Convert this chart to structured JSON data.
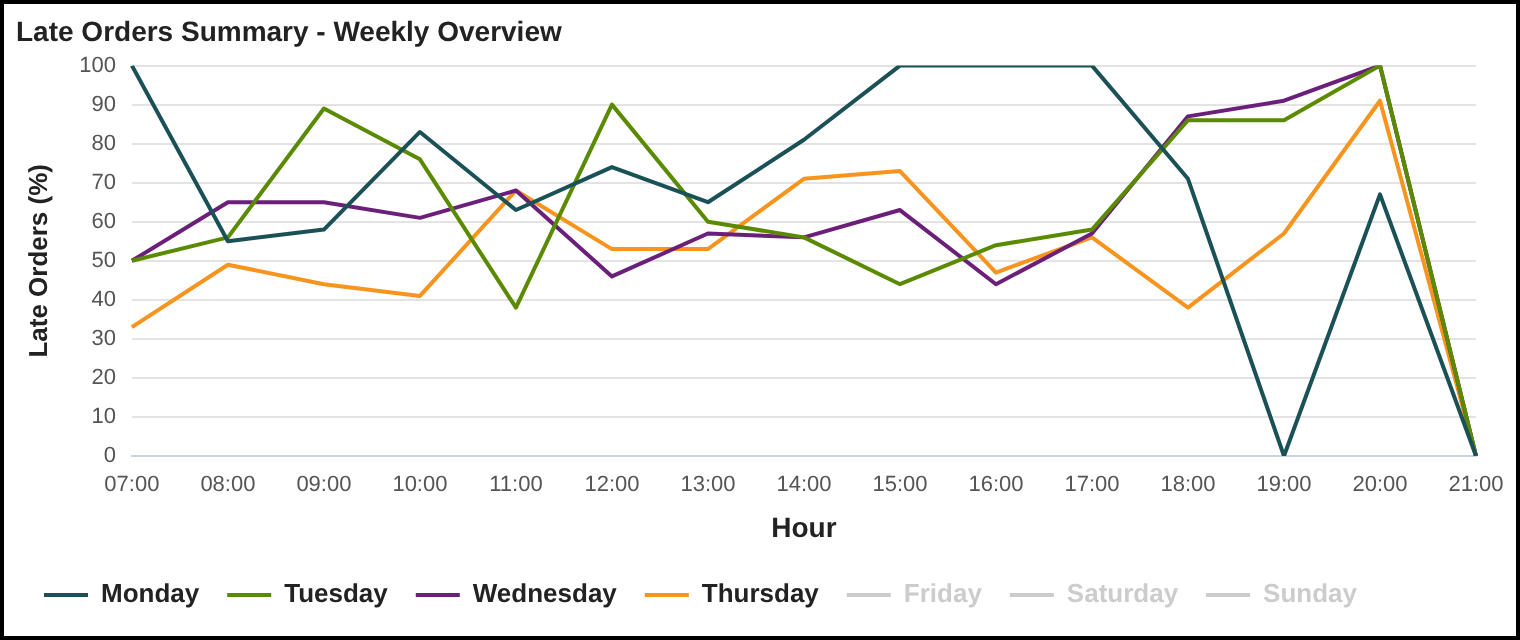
{
  "chart_data": {
    "type": "line",
    "title": "Late Orders Summary - Weekly Overview",
    "xlabel": "Hour",
    "ylabel": "Late Orders (%)",
    "categories": [
      "07:00",
      "08:00",
      "09:00",
      "10:00",
      "11:00",
      "12:00",
      "13:00",
      "14:00",
      "15:00",
      "16:00",
      "17:00",
      "18:00",
      "19:00",
      "20:00",
      "21:00"
    ],
    "series": [
      {
        "name": "Monday",
        "color": "#1a5157",
        "values": [
          100,
          55,
          58,
          83,
          63,
          74,
          65,
          81,
          100,
          100,
          100,
          71,
          0,
          67,
          0
        ]
      },
      {
        "name": "Tuesday",
        "color": "#5a8a00",
        "values": [
          50,
          56,
          89,
          76,
          38,
          90,
          60,
          56,
          44,
          54,
          58,
          86,
          86,
          100,
          0
        ]
      },
      {
        "name": "Wednesday",
        "color": "#6c1f7a",
        "values": [
          50,
          65,
          65,
          61,
          68,
          46,
          57,
          56,
          63,
          44,
          57,
          87,
          91,
          100,
          0
        ]
      },
      {
        "name": "Thursday",
        "color": "#f7941d",
        "values": [
          33,
          49,
          44,
          41,
          68,
          53,
          53,
          71,
          73,
          47,
          56,
          38,
          57,
          91,
          0
        ]
      },
      {
        "name": "Friday",
        "color": "#cccccc",
        "values": [
          null,
          null,
          null,
          null,
          null,
          null,
          null,
          null,
          null,
          null,
          null,
          null,
          null,
          null,
          null
        ]
      },
      {
        "name": "Saturday",
        "color": "#cccccc",
        "values": [
          null,
          null,
          null,
          null,
          null,
          null,
          null,
          null,
          null,
          null,
          null,
          null,
          null,
          null,
          null
        ]
      },
      {
        "name": "Sunday",
        "color": "#cccccc",
        "values": [
          null,
          null,
          null,
          null,
          null,
          null,
          null,
          null,
          null,
          null,
          null,
          null,
          null,
          null,
          null
        ]
      }
    ],
    "ylim": [
      0,
      100
    ],
    "yticks": [
      0,
      10,
      20,
      30,
      40,
      50,
      60,
      70,
      80,
      90,
      100
    ],
    "grid": "y",
    "legend": "bottom left",
    "marker": "none",
    "line_style": "solid"
  }
}
